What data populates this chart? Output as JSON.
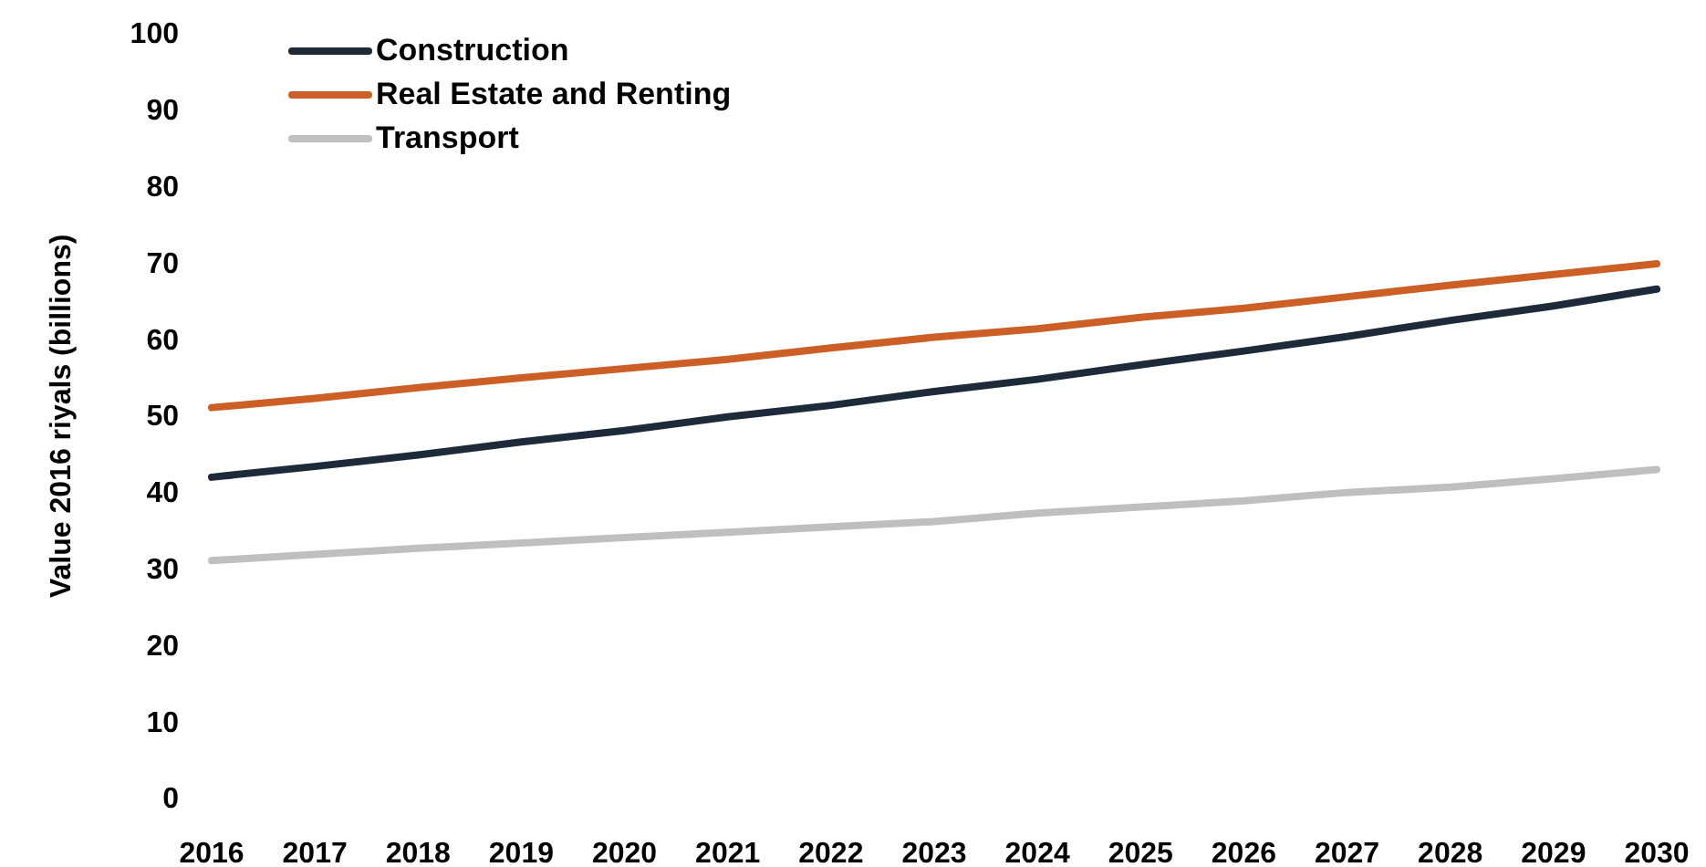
{
  "chart_data": {
    "type": "line",
    "ylabel": "Value 2016 riyals (billions)",
    "categories": [
      "2016",
      "2017",
      "2018",
      "2019",
      "2020",
      "2021",
      "2022",
      "2023",
      "2024",
      "2025",
      "2026",
      "2027",
      "2028",
      "2029",
      "2030"
    ],
    "series": [
      {
        "name": "Construction",
        "color": "#1c2a3a",
        "values": [
          41.9,
          43.3,
          44.8,
          46.5,
          48,
          49.8,
          51.3,
          53.1,
          54.7,
          56.6,
          58.4,
          60.3,
          62.4,
          64.3,
          66.5
        ]
      },
      {
        "name": "Real Estate and Renting",
        "color": "#cc5f26",
        "values": [
          51,
          52.2,
          53.6,
          54.9,
          56.1,
          57.3,
          58.8,
          60.2,
          61.3,
          62.8,
          64,
          65.5,
          67,
          68.4,
          69.8
        ]
      },
      {
        "name": "Transport",
        "color": "#bfbfbf",
        "values": [
          31,
          31.8,
          32.6,
          33.3,
          34,
          34.7,
          35.4,
          36.1,
          37.2,
          38,
          38.8,
          39.9,
          40.6,
          41.7,
          42.9
        ]
      }
    ],
    "ylim": [
      0,
      100
    ],
    "yticks": [
      0,
      10,
      20,
      30,
      40,
      50,
      60,
      70,
      80,
      90,
      100
    ],
    "grid": false,
    "legend": "top left",
    "marker": "none",
    "line_style": "solid"
  }
}
